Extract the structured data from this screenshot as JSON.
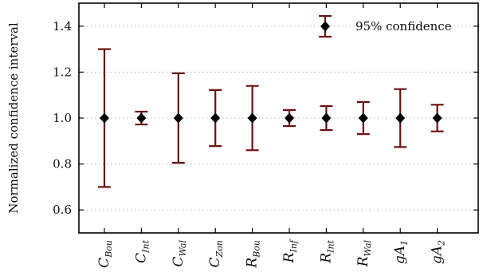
{
  "chart_data": {
    "type": "errorbar",
    "title": "",
    "xlabel": "",
    "ylabel": "Normalized confidence interval",
    "ylim": [
      0.5,
      1.5
    ],
    "yticks": [
      "0.6",
      "0.8",
      "1.0",
      "1.2",
      "1.4"
    ],
    "grid": "horizontal-dotted",
    "legend": {
      "placement": "top-right",
      "label": "95% confidence"
    },
    "categories": [
      {
        "base": "C",
        "sub": "Bou"
      },
      {
        "base": "C",
        "sub": "Int"
      },
      {
        "base": "C",
        "sub": "Wal"
      },
      {
        "base": "C",
        "sub": "Zon"
      },
      {
        "base": "R",
        "sub": "Bou"
      },
      {
        "base": "R",
        "sub": "Inf"
      },
      {
        "base": "R",
        "sub": "Int"
      },
      {
        "base": "R",
        "sub": "Wal"
      },
      {
        "base": "gA",
        "sub": "1"
      },
      {
        "base": "gA",
        "sub": "2"
      }
    ],
    "series": [
      {
        "values": [
          1.0,
          1.0,
          1.0,
          1.0,
          1.0,
          1.0,
          1.0,
          1.0,
          1.0,
          1.0
        ],
        "lower": [
          0.7,
          0.972,
          0.805,
          0.878,
          0.86,
          0.965,
          0.948,
          0.93,
          0.874,
          0.942
        ],
        "upper": [
          1.3,
          1.028,
          1.195,
          1.122,
          1.14,
          1.035,
          1.052,
          1.07,
          1.126,
          1.058
        ]
      }
    ],
    "colors": {
      "marker": "#000000",
      "errorbar": "#6b0f0f",
      "grid": "#b5b5b5"
    }
  }
}
